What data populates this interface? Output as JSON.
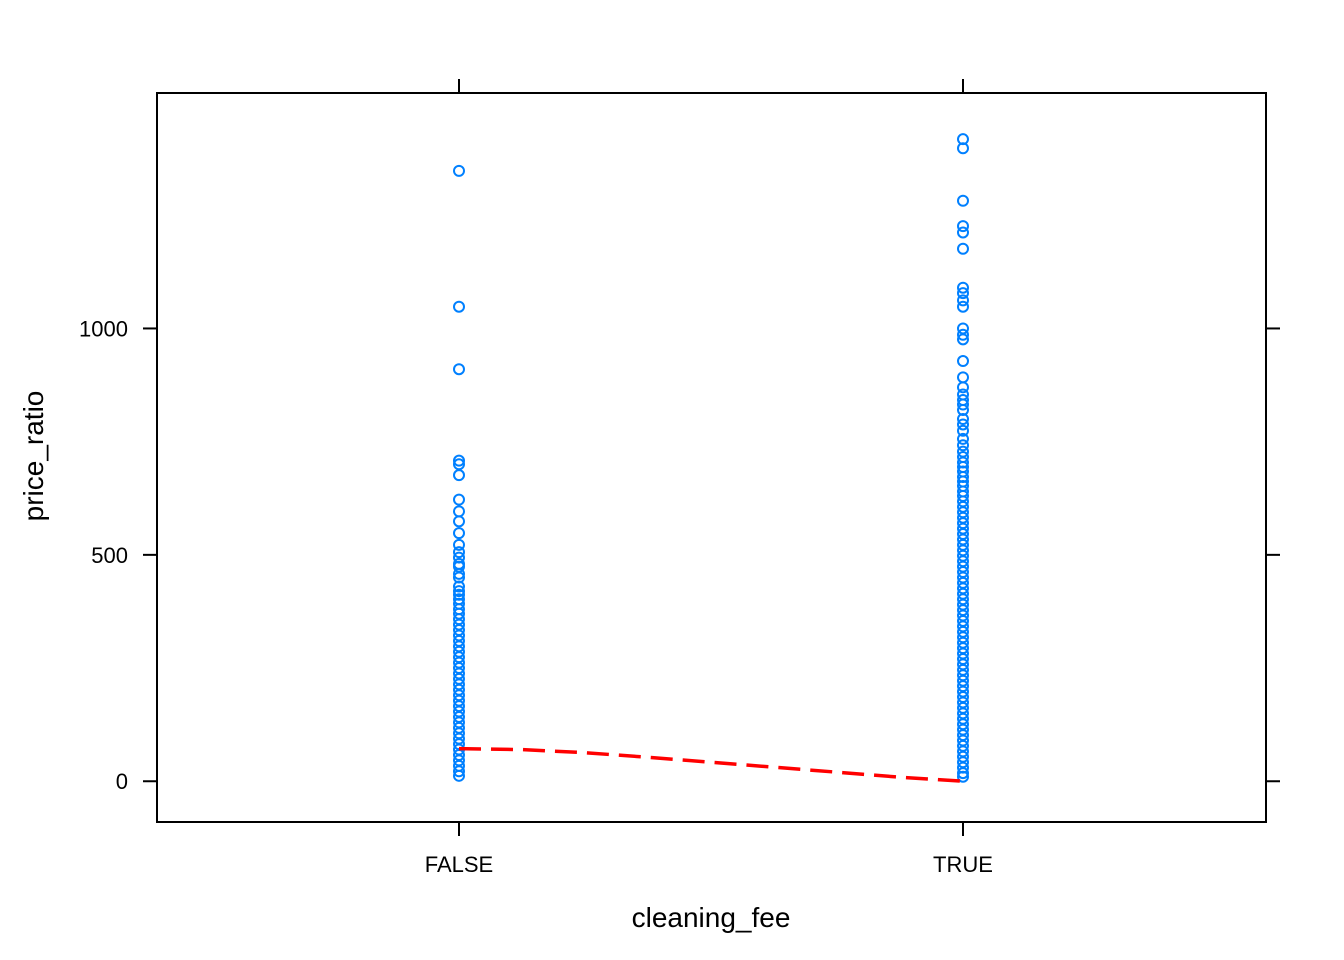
{
  "chart_data": {
    "type": "scatter",
    "xlabel": "cleaning_fee",
    "ylabel": "price_ratio",
    "categories": [
      "FALSE",
      "TRUE"
    ],
    "ylim": [
      -90,
      1520
    ],
    "yticks": [
      0,
      500,
      1000
    ],
    "grid": false,
    "point_color": "#0080ff",
    "line_color": "#ff0000",
    "series": [
      {
        "category": "FALSE",
        "values": [
          1348,
          1048,
          910,
          708,
          700,
          676,
          622,
          596,
          574,
          548,
          522,
          506,
          494,
          480,
          474,
          458,
          450,
          430,
          420,
          412,
          402,
          392,
          380,
          370,
          358,
          346,
          334,
          322,
          310,
          298,
          286,
          274,
          262,
          250,
          238,
          226,
          214,
          202,
          190,
          178,
          166,
          154,
          142,
          130,
          118,
          106,
          94,
          82,
          70,
          58,
          46,
          34,
          22,
          12
        ]
      },
      {
        "category": "TRUE",
        "values": [
          1418,
          1398,
          1282,
          1226,
          1212,
          1176,
          1090,
          1078,
          1062,
          1048,
          1000,
          986,
          976,
          928,
          892,
          870,
          854,
          842,
          832,
          820,
          800,
          788,
          774,
          756,
          742,
          728,
          716,
          704,
          694,
          684,
          672,
          662,
          652,
          640,
          630,
          618,
          606,
          594,
          582,
          570,
          558,
          546,
          534,
          522,
          510,
          498,
          486,
          474,
          462,
          450,
          438,
          426,
          414,
          402,
          390,
          378,
          366,
          354,
          342,
          330,
          318,
          306,
          294,
          282,
          270,
          258,
          246,
          234,
          222,
          210,
          198,
          186,
          174,
          162,
          150,
          138,
          126,
          114,
          102,
          90,
          78,
          66,
          54,
          42,
          30,
          18,
          10
        ]
      }
    ],
    "smooth_line": {
      "style": "dashed",
      "x": [
        0,
        0.125,
        0.25,
        0.375,
        0.5,
        0.625,
        0.75,
        0.875,
        1
      ],
      "y": [
        72,
        70,
        63,
        53,
        42,
        31,
        20,
        9,
        0
      ]
    }
  }
}
